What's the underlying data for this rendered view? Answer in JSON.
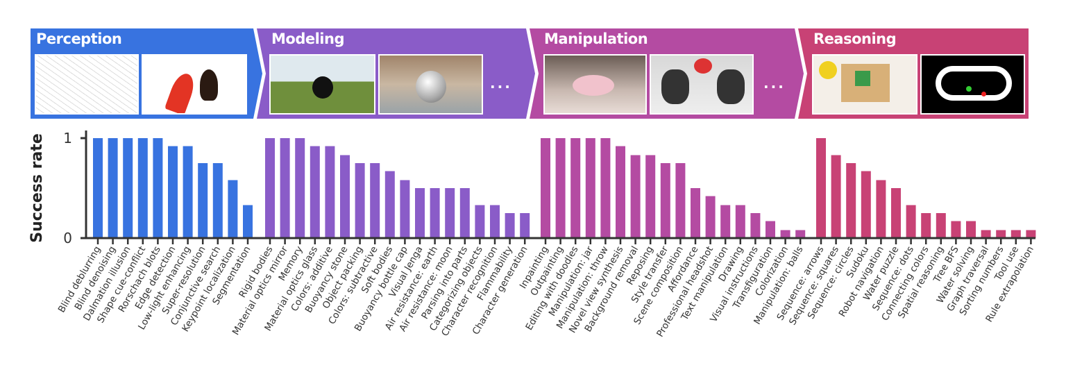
{
  "banner": {
    "segments": [
      {
        "title": "Perception",
        "color": "#3873E0",
        "ellipsis": ""
      },
      {
        "title": "Modeling",
        "color": "#8A5CC8",
        "ellipsis": "..."
      },
      {
        "title": "Manipulation",
        "color": "#B44BA2",
        "ellipsis": "..."
      },
      {
        "title": "Reasoning",
        "color": "#C84275",
        "ellipsis": ""
      }
    ]
  },
  "chart_data": {
    "type": "bar",
    "ylabel": "Success rate",
    "xlabel": "",
    "ylim": [
      0,
      1
    ],
    "yticks": [
      "0",
      "1"
    ],
    "grid": false,
    "groups": [
      {
        "name": "Perception",
        "color": "#3873E0",
        "categories": [
          "Blind deblurring",
          "Blind denoising",
          "Dalmation illusion",
          "Shape cue-conflict",
          "Rorschach blots",
          "Edge detection",
          "Low-light enhancing",
          "Super-resolution",
          "Conjunctive search",
          "Keypoint localization",
          "Segmentation"
        ],
        "values": [
          1,
          1,
          1,
          1,
          1,
          0.92,
          0.92,
          0.75,
          0.75,
          0.58,
          0.33
        ]
      },
      {
        "name": "Modeling",
        "color": "#8A5CC8",
        "categories": [
          "Rigid bodies",
          "Material optics mirror",
          "Memory",
          "Material optics glass",
          "Colors: additive",
          "Buoyancy stone",
          "Object packing",
          "Colors: subtractive",
          "Soft bodies",
          "Buoyancy bottle cap",
          "Visual Jenga",
          "Air resistance: earth",
          "Air resistance: moon",
          "Parsing into parts",
          "Categorizing objects",
          "Character recognition",
          "Flammability",
          "Character generation"
        ],
        "values": [
          1,
          1,
          1,
          0.92,
          0.92,
          0.83,
          0.75,
          0.75,
          0.67,
          0.58,
          0.5,
          0.5,
          0.5,
          0.5,
          0.33,
          0.33,
          0.25,
          0.25
        ]
      },
      {
        "name": "Manipulation",
        "color": "#B44BA2",
        "categories": [
          "Inpainting",
          "Outpainting",
          "Editing with doodles",
          "Manipulation: jar",
          "Manipulation: throw",
          "Novel view synthesis",
          "Background removal",
          "Reposing",
          "Style transfer",
          "Scene composition",
          "Affordance",
          "Professional headshot",
          "Text manipulation",
          "Drawing",
          "Visual instructions",
          "Transfiguration",
          "Colorization",
          "Manipulation: balls"
        ],
        "values": [
          1,
          1,
          1,
          1,
          1,
          0.92,
          0.83,
          0.83,
          0.75,
          0.75,
          0.5,
          0.42,
          0.33,
          0.33,
          0.25,
          0.17,
          0.08,
          0.08
        ]
      },
      {
        "name": "Reasoning",
        "color": "#C84275",
        "categories": [
          "Sequence: arrows",
          "Sequence: squares",
          "Sequence: circles",
          "Sudoku",
          "Robot navigation",
          "Water puzzle",
          "Sequence: dots",
          "Connecting colors",
          "Spatial reasoning",
          "Tree BFS",
          "Water solving",
          "Graph traversal",
          "Sorting numbers",
          "Tool use",
          "Rule extrapolation"
        ],
        "values": [
          1,
          0.83,
          0.75,
          0.67,
          0.58,
          0.5,
          0.33,
          0.25,
          0.25,
          0.17,
          0.17,
          0.08,
          0.08,
          0.08,
          0.08
        ]
      }
    ]
  }
}
